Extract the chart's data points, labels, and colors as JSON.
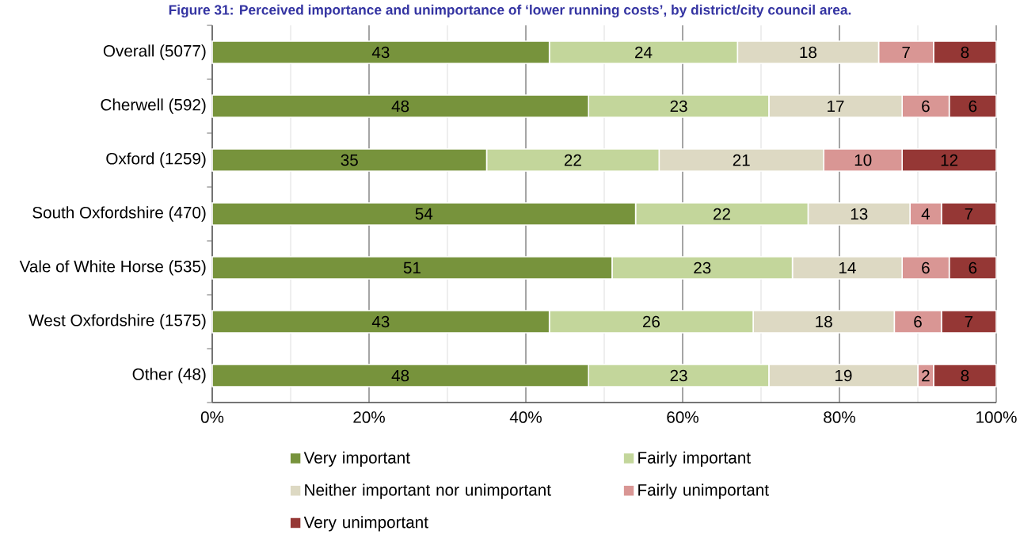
{
  "chart_data": {
    "type": "bar",
    "title": "Figure 31: Perceived importance and unimportance of ‘lower running costs’, by district/city council area.",
    "orientation": "horizontal",
    "stacked": true,
    "categories": [
      "Overall (5077)",
      "Cherwell (592)",
      "Oxford (1259)",
      "South Oxfordshire (470)",
      "Vale of White Horse (535)",
      "West Oxfordshire (1575)",
      "Other (48)"
    ],
    "series": [
      {
        "name": "Very important",
        "color": "#77933c",
        "values": [
          43,
          48,
          35,
          54,
          51,
          43,
          48
        ]
      },
      {
        "name": "Fairly important",
        "color": "#c3d69b",
        "values": [
          24,
          23,
          22,
          22,
          23,
          26,
          23
        ]
      },
      {
        "name": "Neither important nor unimportant",
        "color": "#ddd9c3",
        "values": [
          18,
          17,
          21,
          13,
          14,
          18,
          19
        ]
      },
      {
        "name": "Fairly unimportant",
        "color": "#d99694",
        "values": [
          7,
          6,
          10,
          4,
          6,
          6,
          2
        ]
      },
      {
        "name": "Very unimportant",
        "color": "#953735",
        "values": [
          8,
          6,
          12,
          7,
          6,
          7,
          8
        ]
      }
    ],
    "xlim": [
      0,
      100
    ],
    "xticks": [
      {
        "value": 0,
        "label": "0%"
      },
      {
        "value": 20,
        "label": "20%"
      },
      {
        "value": 40,
        "label": "40%"
      },
      {
        "value": 60,
        "label": "60%"
      },
      {
        "value": 80,
        "label": "80%"
      },
      {
        "value": 100,
        "label": "100%"
      }
    ],
    "grid": "x",
    "legend": "bottom",
    "data_labels": true
  }
}
